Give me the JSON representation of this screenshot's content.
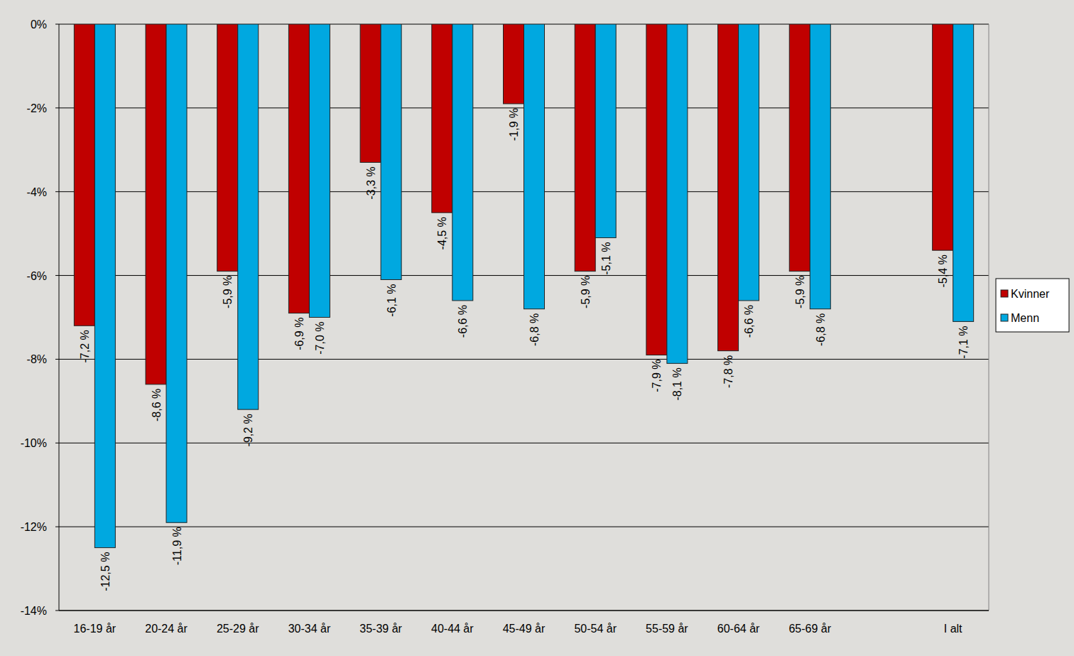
{
  "chart_data": {
    "type": "bar",
    "categories": [
      "16-19 år",
      "20-24 år",
      "25-29 år",
      "30-34 år",
      "35-39 år",
      "40-44 år",
      "45-49 år",
      "50-54 år",
      "55-59 år",
      "60-64 år",
      "65-69 år",
      null,
      "I alt"
    ],
    "series": [
      {
        "name": "Kvinner",
        "color": "#c00000",
        "values": [
          -7.2,
          -8.6,
          -5.9,
          -6.9,
          -3.3,
          -4.5,
          -1.9,
          -5.9,
          -7.9,
          -7.8,
          -5.9,
          null,
          -5.4
        ],
        "value_labels": [
          "-7,2 %",
          "-8,6 %",
          "-5,9 %",
          "-6,9 %",
          "-3,3 %",
          "-4,5 %",
          "-1,9 %",
          "-5,9 %",
          "-7,9 %",
          "-7,8 %",
          "-5,9 %",
          null,
          "-5,4 %"
        ]
      },
      {
        "name": "Menn",
        "color": "#00a8e0",
        "values": [
          -12.5,
          -11.9,
          -9.2,
          -7.0,
          -6.1,
          -6.6,
          -6.8,
          -5.1,
          -8.1,
          -6.6,
          -6.8,
          null,
          -7.1
        ],
        "value_labels": [
          "-12,5 %",
          "-11,9 %",
          "-9,2 %",
          "-7,0 %",
          "-6,1 %",
          "-6,6 %",
          "-6,8 %",
          "-5,1 %",
          "-8,1 %",
          "-6,6 %",
          "-6,8 %",
          null,
          "-7,1 %"
        ]
      }
    ],
    "ylim": [
      -14,
      0
    ],
    "yticks": [
      {
        "value": 0,
        "label": "0%"
      },
      {
        "value": -2,
        "label": "-2%"
      },
      {
        "value": -4,
        "label": "-4%"
      },
      {
        "value": -6,
        "label": "-6%"
      },
      {
        "value": -8,
        "label": "-8%"
      },
      {
        "value": -10,
        "label": "-10%"
      },
      {
        "value": -12,
        "label": "-12%"
      },
      {
        "value": -14,
        "label": "-14%"
      }
    ],
    "grid": true,
    "legend": "right",
    "data_labels": true
  }
}
